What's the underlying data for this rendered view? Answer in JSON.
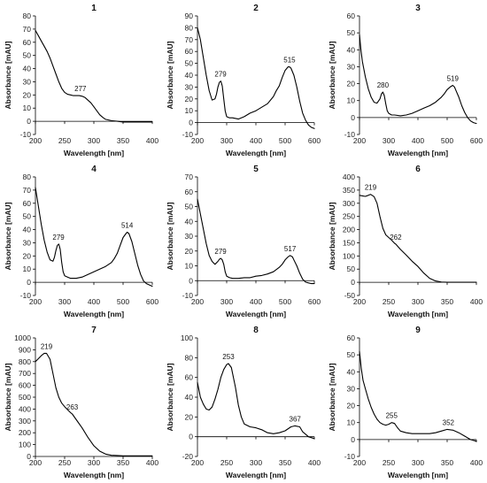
{
  "chart_data": [
    {
      "type": "line",
      "title": "1",
      "xlabel": "Wavelength [nm]",
      "ylabel": "Absorbance [mAU]",
      "xlim": [
        200,
        400
      ],
      "ylim": [
        -10,
        80
      ],
      "xticks": [
        200,
        250,
        300,
        350,
        400
      ],
      "yticks": [
        -10,
        0,
        10,
        20,
        30,
        40,
        50,
        60,
        70,
        80
      ],
      "series": [
        {
          "x": [
            200,
            205,
            210,
            215,
            220,
            225,
            230,
            235,
            240,
            245,
            250,
            255,
            260,
            265,
            270,
            275,
            280,
            285,
            290,
            295,
            300,
            305,
            310,
            315,
            320,
            330,
            340,
            350,
            360,
            380,
            400
          ],
          "values": [
            69,
            65,
            61,
            57,
            53,
            48,
            42,
            36,
            30,
            25,
            22,
            20.5,
            20,
            19.5,
            19.5,
            19.5,
            19,
            18,
            16,
            14,
            11,
            8,
            5,
            3,
            1.5,
            0.5,
            0,
            -0.5,
            -0.5,
            -0.5,
            -0.5
          ]
        }
      ],
      "peaks": [
        {
          "x": 277,
          "y": 19.5,
          "label": "277"
        }
      ]
    },
    {
      "type": "line",
      "title": "2",
      "xlabel": "Wavelength [nm]",
      "ylabel": "Absorbance [mAU]",
      "xlim": [
        200,
        600
      ],
      "ylim": [
        -10,
        90
      ],
      "xticks": [
        200,
        300,
        400,
        500,
        600
      ],
      "yticks": [
        -10,
        0,
        10,
        20,
        30,
        40,
        50,
        60,
        70,
        80,
        90
      ],
      "series": [
        {
          "x": [
            200,
            210,
            220,
            230,
            240,
            250,
            260,
            265,
            270,
            275,
            280,
            285,
            290,
            295,
            300,
            310,
            320,
            340,
            360,
            380,
            400,
            420,
            440,
            460,
            470,
            480,
            490,
            500,
            510,
            515,
            520,
            530,
            540,
            550,
            560,
            570,
            580,
            590,
            600
          ],
          "values": [
            80,
            70,
            55,
            40,
            27,
            19,
            20,
            24,
            30,
            34,
            35,
            31,
            20,
            10,
            5,
            4,
            4,
            3,
            5,
            8,
            10,
            13,
            16,
            22,
            27,
            31,
            38,
            44,
            47,
            47,
            46,
            40,
            30,
            18,
            8,
            2,
            -2,
            -4,
            -5
          ]
        }
      ],
      "peaks": [
        {
          "x": 279,
          "y": 35,
          "label": "279"
        },
        {
          "x": 515,
          "y": 47,
          "label": "515"
        }
      ]
    },
    {
      "type": "line",
      "title": "3",
      "xlabel": "Wavelength [nm]",
      "ylabel": "Absorbance [mAU]",
      "xlim": [
        200,
        600
      ],
      "ylim": [
        -10,
        60
      ],
      "xticks": [
        200,
        300,
        400,
        500,
        600
      ],
      "yticks": [
        -10,
        0,
        10,
        20,
        30,
        40,
        50,
        60
      ],
      "series": [
        {
          "x": [
            200,
            205,
            210,
            220,
            230,
            240,
            250,
            260,
            270,
            275,
            280,
            285,
            290,
            295,
            300,
            310,
            320,
            340,
            360,
            380,
            400,
            420,
            440,
            460,
            480,
            490,
            500,
            510,
            519,
            525,
            530,
            540,
            550,
            560,
            570,
            580,
            590,
            600
          ],
          "values": [
            49,
            40,
            33,
            24,
            17,
            12,
            9,
            8.5,
            11,
            14,
            15,
            13,
            8,
            4,
            2.5,
            1.5,
            1.5,
            1,
            1.5,
            2.5,
            4,
            5.5,
            7,
            9,
            12,
            14,
            16.5,
            18,
            19,
            18,
            16,
            12,
            7,
            3,
            0,
            -2,
            -3,
            -3.5
          ]
        }
      ],
      "peaks": [
        {
          "x": 280,
          "y": 15,
          "label": "280"
        },
        {
          "x": 519,
          "y": 19,
          "label": "519"
        }
      ]
    },
    {
      "type": "line",
      "title": "4",
      "xlabel": "Wavelength [nm]",
      "ylabel": "Absorbance [mAU]",
      "xlim": [
        200,
        600
      ],
      "ylim": [
        -10,
        80
      ],
      "xticks": [
        200,
        300,
        400,
        500,
        600
      ],
      "yticks": [
        -10,
        0,
        10,
        20,
        30,
        40,
        50,
        60,
        70,
        80
      ],
      "series": [
        {
          "x": [
            200,
            210,
            220,
            230,
            240,
            250,
            260,
            265,
            270,
            275,
            280,
            285,
            290,
            295,
            300,
            310,
            320,
            340,
            360,
            380,
            400,
            420,
            440,
            460,
            470,
            480,
            490,
            500,
            510,
            514,
            520,
            530,
            540,
            550,
            560,
            570,
            580,
            590,
            600
          ],
          "values": [
            72,
            58,
            44,
            32,
            23,
            17,
            16,
            19,
            24,
            28,
            29,
            25,
            15,
            8,
            5,
            4,
            3,
            3,
            4,
            6,
            8,
            10,
            12,
            15,
            18,
            22,
            28,
            34,
            37,
            38,
            37,
            31,
            22,
            13,
            6,
            1,
            -1,
            -2,
            -3
          ]
        }
      ],
      "peaks": [
        {
          "x": 279,
          "y": 29,
          "label": "279"
        },
        {
          "x": 514,
          "y": 38,
          "label": "514"
        }
      ]
    },
    {
      "type": "line",
      "title": "5",
      "xlabel": "Wavelength [nm]",
      "ylabel": "Absorbance [mAU]",
      "xlim": [
        200,
        600
      ],
      "ylim": [
        -10,
        70
      ],
      "xticks": [
        200,
        300,
        400,
        500,
        600
      ],
      "yticks": [
        -10,
        0,
        10,
        20,
        30,
        40,
        50,
        60,
        70
      ],
      "series": [
        {
          "x": [
            200,
            210,
            220,
            230,
            240,
            250,
            260,
            270,
            275,
            280,
            285,
            290,
            295,
            300,
            310,
            320,
            340,
            360,
            380,
            400,
            420,
            440,
            460,
            480,
            490,
            500,
            510,
            517,
            525,
            530,
            540,
            550,
            560,
            570,
            580,
            590,
            600
          ],
          "values": [
            55,
            45,
            35,
            25,
            17,
            13,
            11,
            13,
            14.5,
            15,
            14,
            11,
            6,
            3,
            2,
            1.5,
            1.5,
            2,
            2,
            3,
            3.5,
            4.5,
            6,
            9,
            11,
            14,
            16,
            17,
            16,
            14,
            10,
            5,
            1,
            -1,
            -1.5,
            -2,
            -2
          ]
        }
      ],
      "peaks": [
        {
          "x": 279,
          "y": 15,
          "label": "279"
        },
        {
          "x": 517,
          "y": 17,
          "label": "517"
        }
      ]
    },
    {
      "type": "line",
      "title": "6",
      "xlabel": "Wavelength [nm]",
      "ylabel": "Absorbance [mAU]",
      "xlim": [
        200,
        400
      ],
      "ylim": [
        -50,
        400
      ],
      "xticks": [
        200,
        250,
        300,
        350,
        400
      ],
      "yticks": [
        -50,
        0,
        50,
        100,
        150,
        200,
        250,
        300,
        350,
        400
      ],
      "series": [
        {
          "x": [
            200,
            205,
            210,
            215,
            219,
            225,
            230,
            235,
            240,
            245,
            250,
            255,
            260,
            262,
            270,
            280,
            290,
            300,
            310,
            320,
            330,
            340,
            350,
            360,
            380,
            400
          ],
          "values": [
            330,
            328,
            326,
            330,
            334,
            325,
            300,
            250,
            205,
            180,
            170,
            160,
            148,
            145,
            125,
            103,
            80,
            60,
            35,
            15,
            5,
            1,
            0,
            0,
            0,
            0
          ]
        }
      ],
      "peaks": [
        {
          "x": 219,
          "y": 334,
          "label": "219"
        },
        {
          "x": 262,
          "y": 145,
          "label": "262"
        }
      ]
    },
    {
      "type": "line",
      "title": "7",
      "xlabel": "Wavelength [nm]",
      "ylabel": "Absorbance [mAU]",
      "xlim": [
        200,
        400
      ],
      "ylim": [
        0,
        1000
      ],
      "xticks": [
        200,
        250,
        300,
        350,
        400
      ],
      "yticks": [
        0,
        100,
        200,
        300,
        400,
        500,
        600,
        700,
        800,
        900,
        1000
      ],
      "series": [
        {
          "x": [
            200,
            205,
            210,
            215,
            219,
            225,
            230,
            235,
            240,
            245,
            250,
            255,
            260,
            263,
            270,
            280,
            290,
            300,
            310,
            320,
            330,
            340,
            350,
            360,
            380,
            400
          ],
          "values": [
            800,
            825,
            850,
            870,
            870,
            820,
            700,
            580,
            500,
            450,
            420,
            395,
            370,
            358,
            310,
            240,
            160,
            90,
            45,
            20,
            10,
            8,
            5,
            5,
            5,
            5
          ]
        }
      ],
      "peaks": [
        {
          "x": 219,
          "y": 870,
          "label": "219"
        },
        {
          "x": 263,
          "y": 358,
          "label": "263"
        }
      ]
    },
    {
      "type": "line",
      "title": "8",
      "xlabel": "Wavelength [nm]",
      "ylabel": "Absorbance [mAU]",
      "xlim": [
        200,
        400
      ],
      "ylim": [
        -20,
        100
      ],
      "xticks": [
        200,
        250,
        300,
        350,
        400
      ],
      "yticks": [
        -20,
        0,
        20,
        40,
        60,
        80,
        100
      ],
      "series": [
        {
          "x": [
            200,
            205,
            210,
            215,
            220,
            225,
            230,
            235,
            240,
            245,
            250,
            253,
            258,
            265,
            270,
            275,
            280,
            290,
            300,
            310,
            320,
            330,
            340,
            350,
            360,
            367,
            375,
            380,
            390,
            400
          ],
          "values": [
            55,
            40,
            33,
            28,
            27,
            30,
            38,
            48,
            60,
            68,
            73,
            74,
            70,
            50,
            32,
            20,
            13,
            10,
            9,
            7,
            4,
            3,
            4,
            6,
            10,
            11,
            10,
            5,
            0,
            -2
          ]
        }
      ],
      "peaks": [
        {
          "x": 253,
          "y": 74,
          "label": "253"
        },
        {
          "x": 367,
          "y": 11,
          "label": "367"
        }
      ]
    },
    {
      "type": "line",
      "title": "9",
      "xlabel": "Wavelength [nm]",
      "ylabel": "Absorbance [mAU]",
      "xlim": [
        200,
        400
      ],
      "ylim": [
        -10,
        60
      ],
      "xticks": [
        200,
        250,
        300,
        350,
        400
      ],
      "yticks": [
        -10,
        0,
        10,
        20,
        30,
        40,
        50,
        60
      ],
      "series": [
        {
          "x": [
            200,
            203,
            206,
            210,
            215,
            220,
            225,
            230,
            235,
            240,
            245,
            250,
            255,
            260,
            265,
            270,
            280,
            290,
            300,
            310,
            320,
            330,
            340,
            350,
            360,
            370,
            380,
            390,
            400
          ],
          "values": [
            52,
            42,
            35,
            30,
            24,
            19,
            15,
            12,
            10,
            9,
            8.5,
            9,
            10,
            9.5,
            7,
            5,
            4,
            3.5,
            3.5,
            3.5,
            3.5,
            4,
            5,
            6,
            5.5,
            4,
            2,
            0,
            -1
          ]
        }
      ],
      "peaks": [
        {
          "x": 255,
          "y": 10,
          "label": "255"
        },
        {
          "x": 352,
          "y": 6,
          "label": "352"
        }
      ]
    }
  ]
}
